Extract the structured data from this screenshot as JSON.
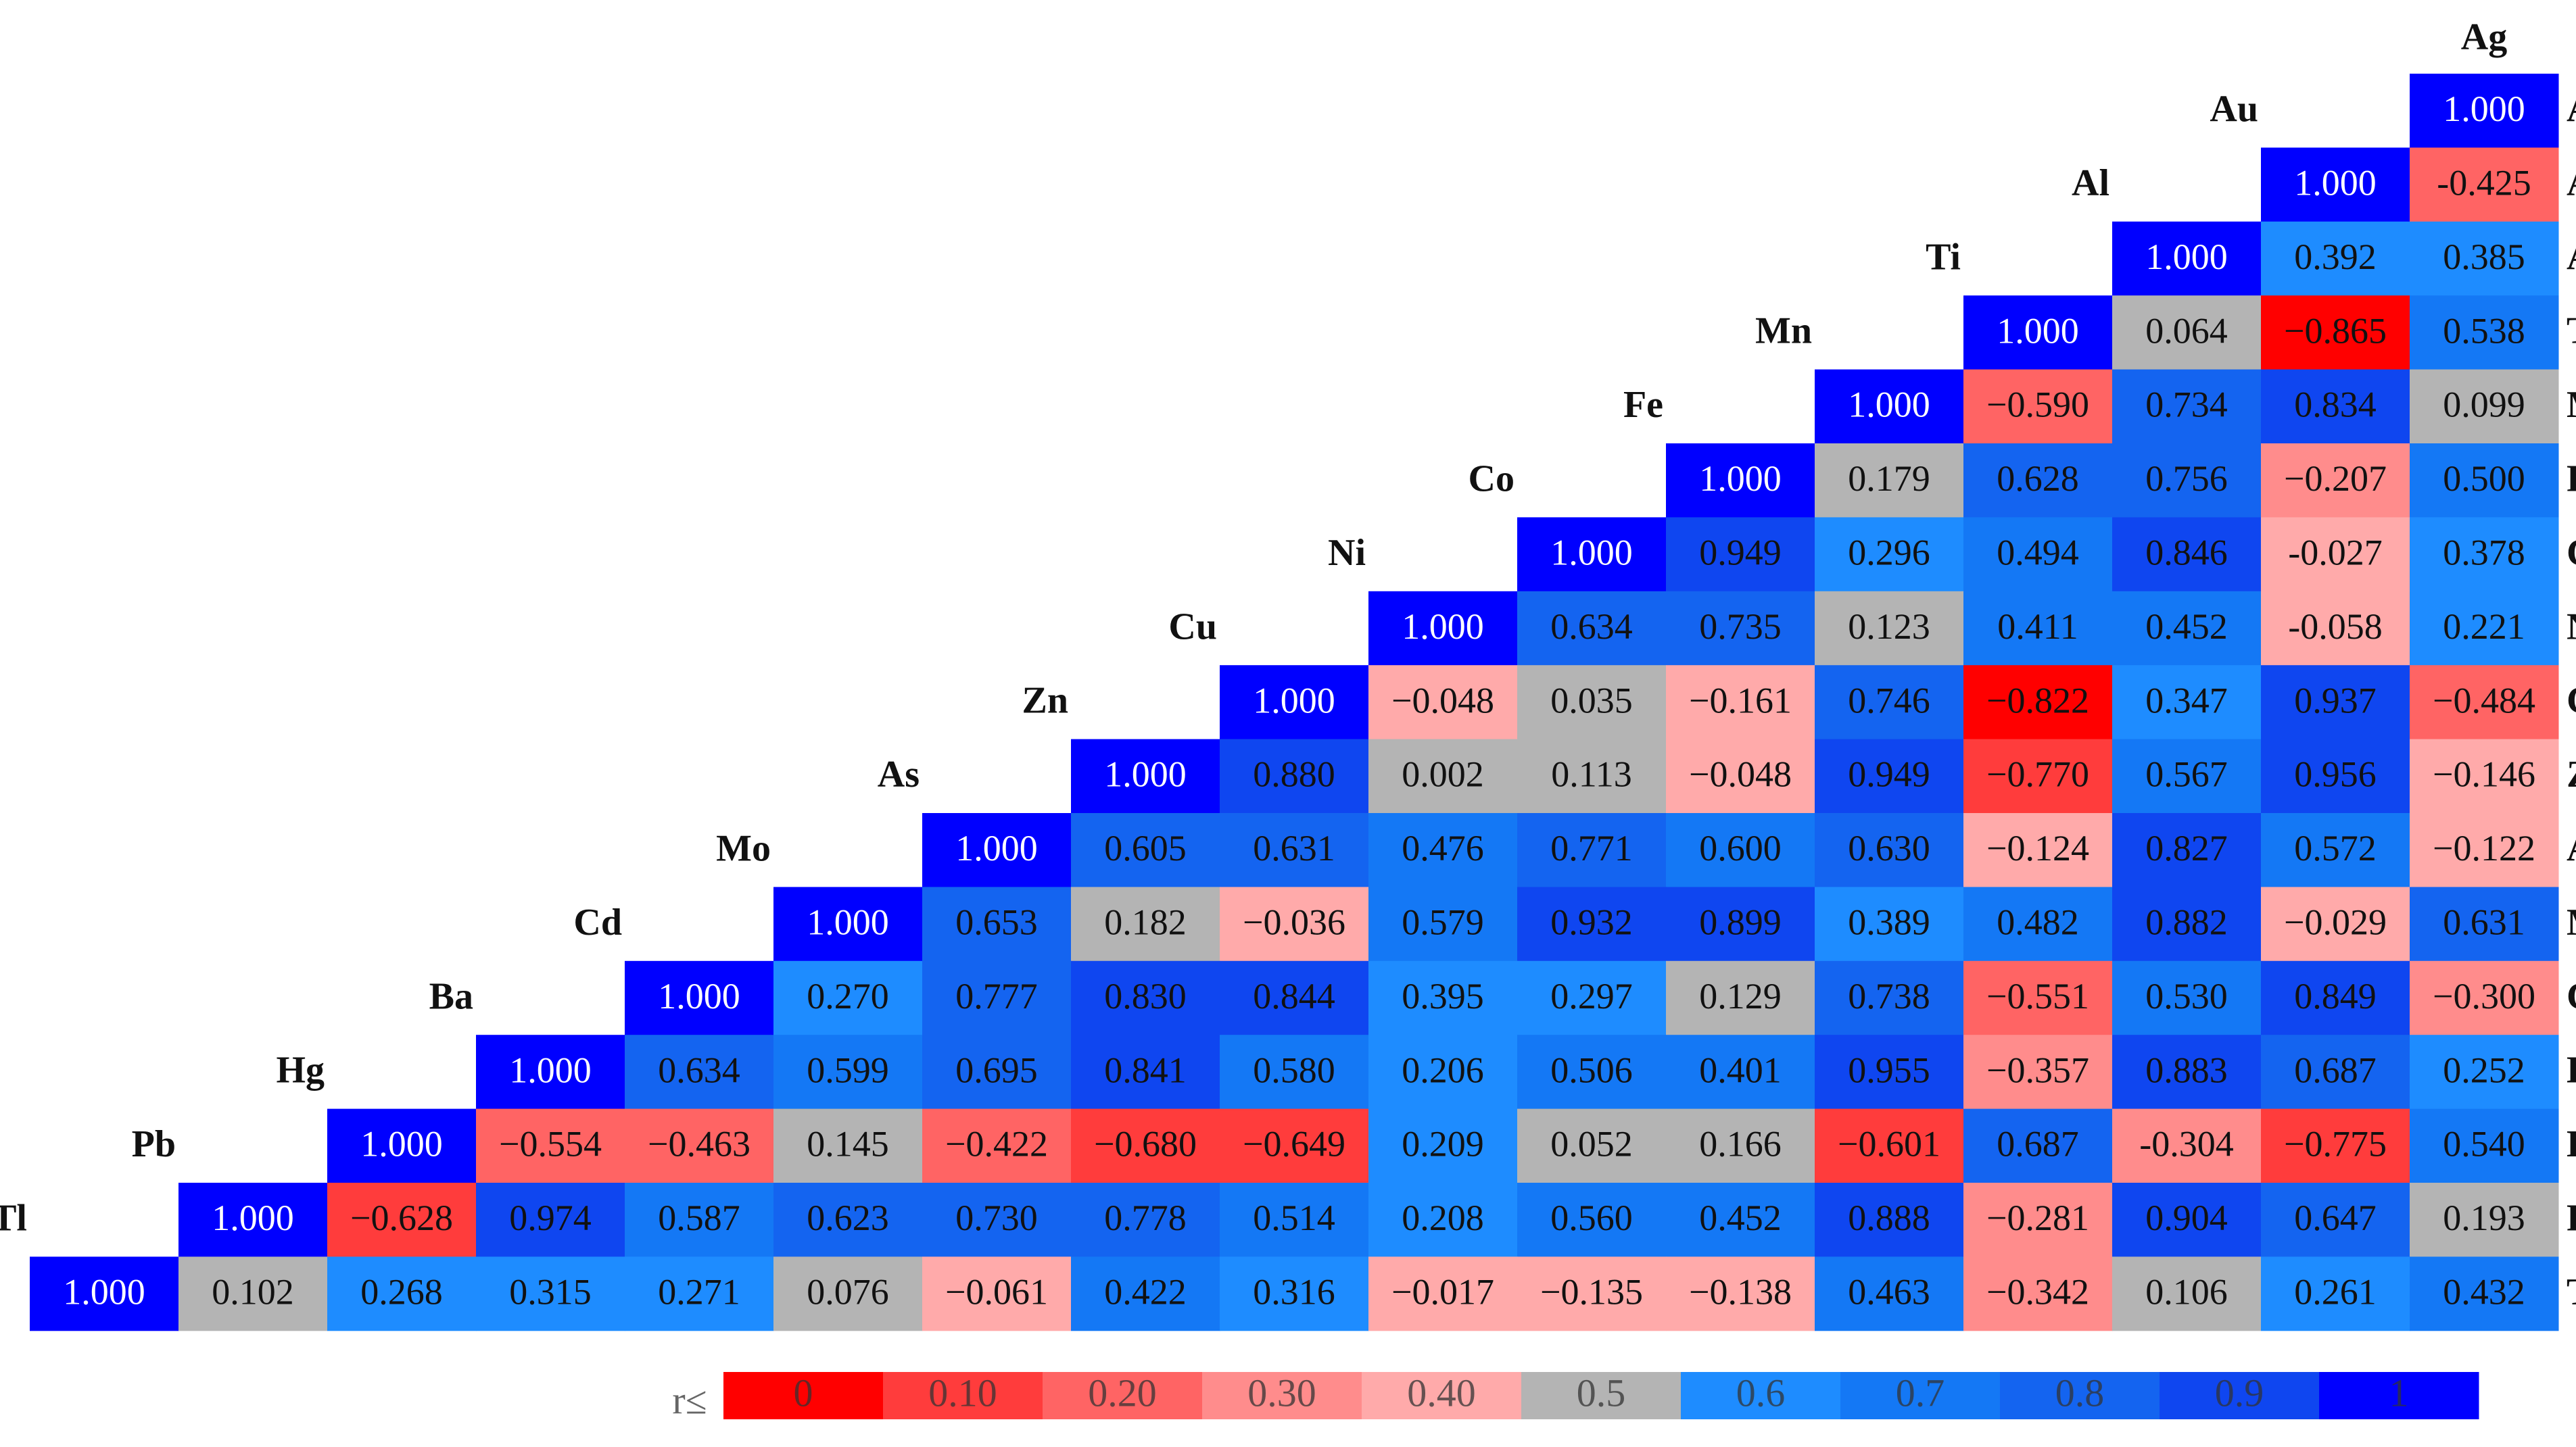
{
  "chart_data": {
    "type": "heatmap",
    "labels": [
      "Ag",
      "Au",
      "Al",
      "Ti",
      "Mn",
      "Fe",
      "Co",
      "Ni",
      "Cu",
      "Zn",
      "As",
      "Mo",
      "Cd",
      "Ba",
      "Hg",
      "Pb",
      "Tl"
    ],
    "values": [
      [
        1.0
      ],
      [
        1.0,
        -0.425
      ],
      [
        1.0,
        0.392,
        0.385
      ],
      [
        1.0,
        0.064,
        -0.865,
        0.538
      ],
      [
        1.0,
        -0.59,
        0.734,
        0.834,
        0.099
      ],
      [
        1.0,
        0.179,
        0.628,
        0.756,
        -0.207,
        0.5
      ],
      [
        1.0,
        0.949,
        0.296,
        0.494,
        0.846,
        -0.027,
        0.378
      ],
      [
        1.0,
        0.634,
        0.735,
        0.123,
        0.411,
        0.452,
        -0.058,
        0.221
      ],
      [
        1.0,
        -0.048,
        0.035,
        -0.161,
        0.746,
        -0.822,
        0.347,
        0.937,
        -0.484
      ],
      [
        1.0,
        0.88,
        0.002,
        0.113,
        -0.048,
        0.949,
        -0.77,
        0.567,
        0.956,
        -0.146
      ],
      [
        1.0,
        0.605,
        0.631,
        0.476,
        0.771,
        0.6,
        0.63,
        -0.124,
        0.827,
        0.572,
        -0.122
      ],
      [
        1.0,
        0.653,
        0.182,
        -0.036,
        0.579,
        0.932,
        0.899,
        0.389,
        0.482,
        0.882,
        -0.029,
        0.631
      ],
      [
        1.0,
        0.27,
        0.777,
        0.83,
        0.844,
        0.395,
        0.297,
        0.129,
        0.738,
        -0.551,
        0.53,
        0.849,
        -0.3
      ],
      [
        1.0,
        0.634,
        0.599,
        0.695,
        0.841,
        0.58,
        0.206,
        0.506,
        0.401,
        0.955,
        -0.357,
        0.883,
        0.687,
        0.252
      ],
      [
        1.0,
        -0.554,
        -0.463,
        0.145,
        -0.422,
        -0.68,
        -0.649,
        0.209,
        0.052,
        0.166,
        -0.601,
        0.687,
        -0.304,
        -0.775,
        0.54
      ],
      [
        1.0,
        -0.628,
        0.974,
        0.587,
        0.623,
        0.73,
        0.778,
        0.514,
        0.208,
        0.56,
        0.452,
        0.888,
        -0.281,
        0.904,
        0.647,
        0.193
      ],
      [
        1.0,
        0.102,
        0.268,
        0.315,
        0.271,
        0.076,
        -0.061,
        0.422,
        0.316,
        -0.017,
        -0.135,
        -0.138,
        0.463,
        -0.342,
        0.106,
        0.261,
        0.432
      ]
    ],
    "value_labels": [
      [
        "1.000"
      ],
      [
        "1.000",
        "-0.425"
      ],
      [
        "1.000",
        "0.392",
        "0.385"
      ],
      [
        "1.000",
        "0.064",
        "−0.865",
        "0.538"
      ],
      [
        "1.000",
        "−0.590",
        "0.734",
        "0.834",
        "0.099"
      ],
      [
        "1.000",
        "0.179",
        "0.628",
        "0.756",
        "−0.207",
        "0.500"
      ],
      [
        "1.000",
        "0.949",
        "0.296",
        "0.494",
        "0.846",
        "-0.027",
        "0.378"
      ],
      [
        "1.000",
        "0.634",
        "0.735",
        "0.123",
        "0.411",
        "0.452",
        "-0.058",
        "0.221"
      ],
      [
        "1.000",
        "−0.048",
        "0.035",
        "−0.161",
        "0.746",
        "−0.822",
        "0.347",
        "0.937",
        "−0.484"
      ],
      [
        "1.000",
        "0.880",
        "0.002",
        "0.113",
        "−0.048",
        "0.949",
        "−0.770",
        "0.567",
        "0.956",
        "−0.146"
      ],
      [
        "1.000",
        "0.605",
        "0.631",
        "0.476",
        "0.771",
        "0.600",
        "0.630",
        "−0.124",
        "0.827",
        "0.572",
        "−0.122"
      ],
      [
        "1.000",
        "0.653",
        "0.182",
        "−0.036",
        "0.579",
        "0.932",
        "0.899",
        "0.389",
        "0.482",
        "0.882",
        "−0.029",
        "0.631"
      ],
      [
        "1.000",
        "0.270",
        "0.777",
        "0.830",
        "0.844",
        "0.395",
        "0.297",
        "0.129",
        "0.738",
        "−0.551",
        "0.530",
        "0.849",
        "−0.300"
      ],
      [
        "1.000",
        "0.634",
        "0.599",
        "0.695",
        "0.841",
        "0.580",
        "0.206",
        "0.506",
        "0.401",
        "0.955",
        "−0.357",
        "0.883",
        "0.687",
        "0.252"
      ],
      [
        "1.000",
        "−0.554",
        "−0.463",
        "0.145",
        "−0.422",
        "−0.680",
        "−0.649",
        "0.209",
        "0.052",
        "0.166",
        "−0.601",
        "0.687",
        "-0.304",
        "−0.775",
        "0.540"
      ],
      [
        "1.000",
        "−0.628",
        "0.974",
        "0.587",
        "0.623",
        "0.730",
        "0.778",
        "0.514",
        "0.208",
        "0.560",
        "0.452",
        "0.888",
        "−0.281",
        "0.904",
        "0.647",
        "0.193"
      ],
      [
        "1.000",
        "0.102",
        "0.268",
        "0.315",
        "0.271",
        "0.076",
        "−0.061",
        "0.422",
        "0.316",
        "−0.017",
        "−0.135",
        "−0.138",
        "0.463",
        "−0.342",
        "0.106",
        "0.261",
        "0.432"
      ]
    ],
    "legend": {
      "title": "r≤",
      "bins": [
        {
          "value": 0,
          "label": "0",
          "color": "#ff0000"
        },
        {
          "value": 0.1,
          "label": "0.10",
          "color": "#ff3c3c"
        },
        {
          "value": 0.2,
          "label": "0.20",
          "color": "#ff6464"
        },
        {
          "value": 0.3,
          "label": "0.30",
          "color": "#ff8c8c"
        },
        {
          "value": 0.4,
          "label": "0.40",
          "color": "#ffaaaa"
        },
        {
          "value": 0.5,
          "label": "0.5",
          "color": "#b4b4b4"
        },
        {
          "value": 0.6,
          "label": "0.6",
          "color": "#1e8cff"
        },
        {
          "value": 0.7,
          "label": "0.7",
          "color": "#1478f5"
        },
        {
          "value": 0.8,
          "label": "0.8",
          "color": "#1464f0"
        },
        {
          "value": 0.9,
          "label": "0.9",
          "color": "#0f46f0"
        },
        {
          "value": 1,
          "label": "1",
          "color": "#0000ff"
        }
      ]
    }
  }
}
